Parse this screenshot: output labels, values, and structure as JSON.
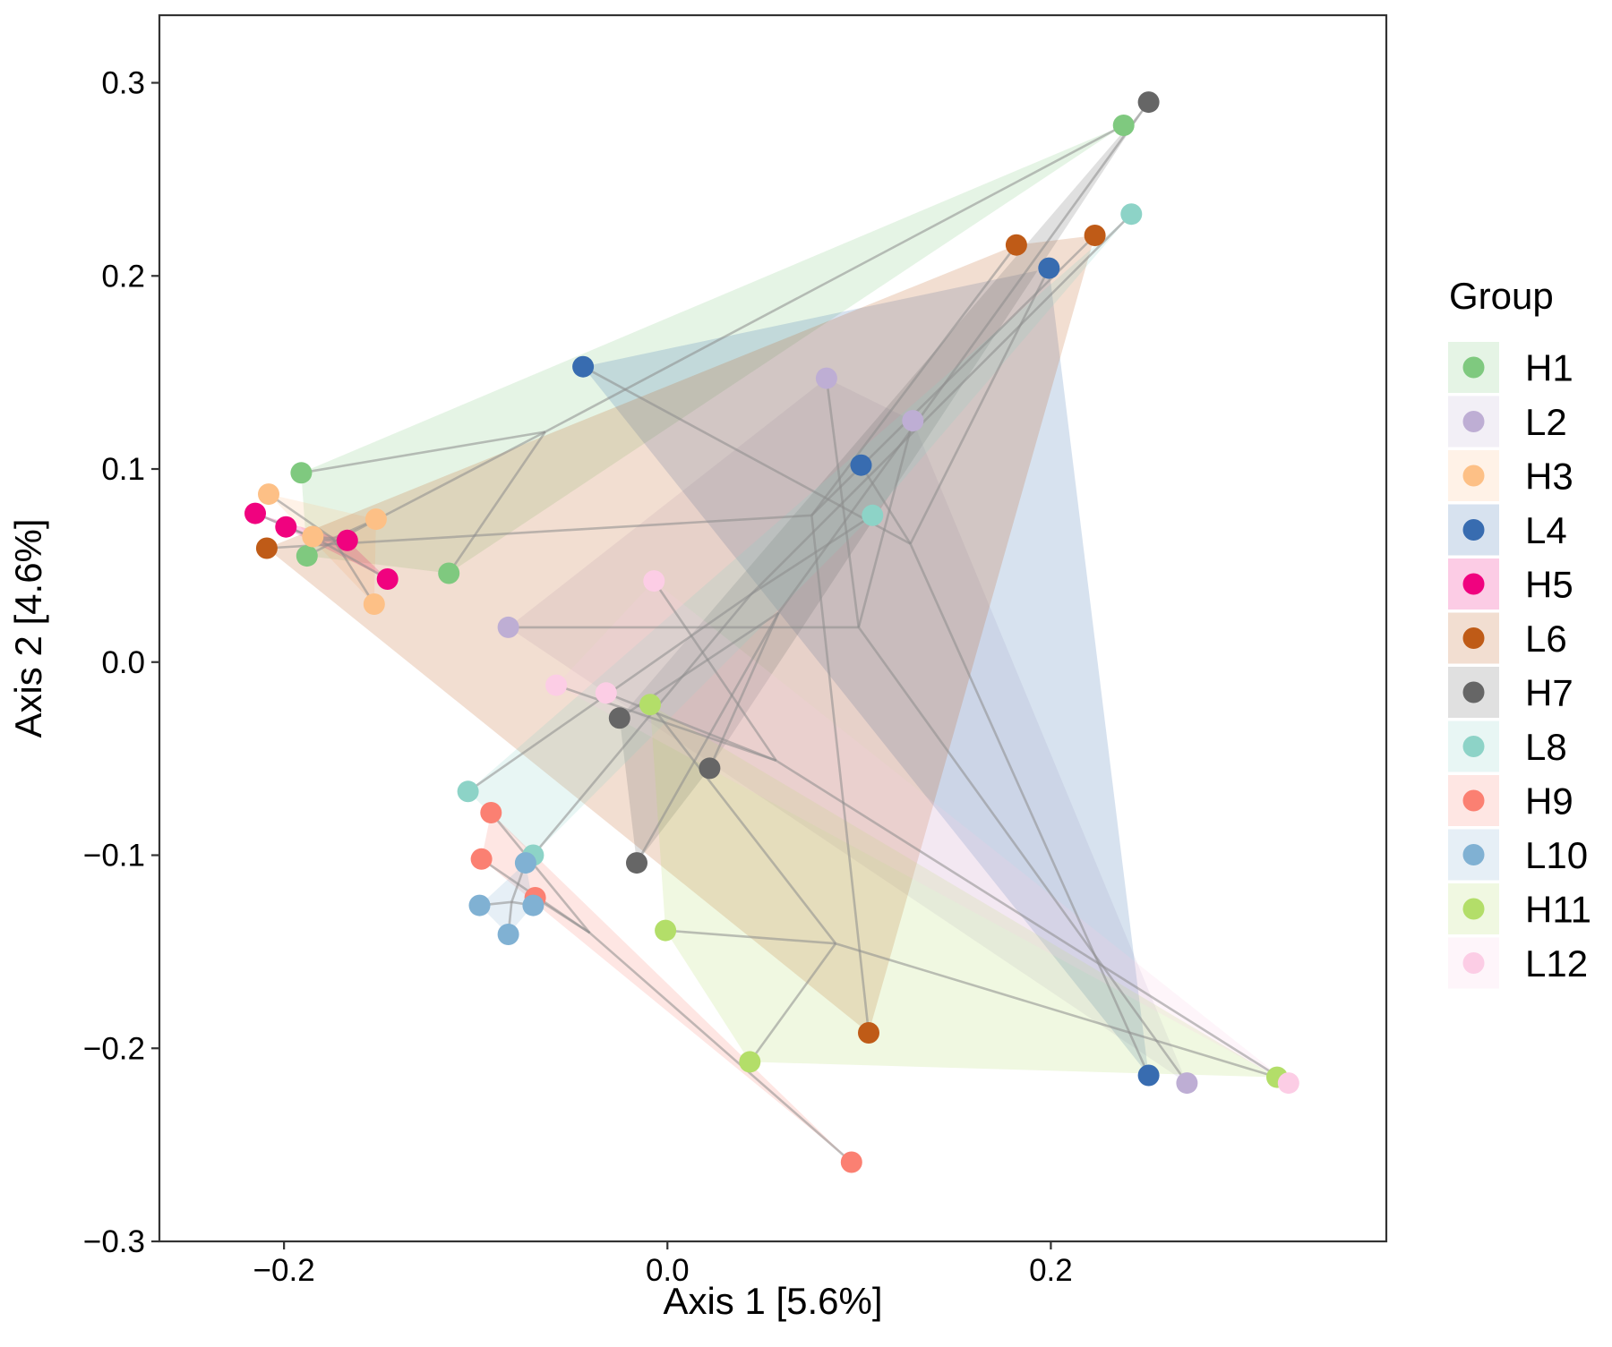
{
  "chart_data": {
    "type": "scatter",
    "title": "",
    "xlabel": "Axis 1 [5.6%]",
    "ylabel": "Axis 2 [4.6%]",
    "xlim": [
      -0.265,
      0.375
    ],
    "ylim": [
      -0.3,
      0.335
    ],
    "x_ticks": [
      -0.2,
      0.0,
      0.2
    ],
    "x_tick_labels": [
      "−0.2",
      "0.0",
      "0.2"
    ],
    "y_ticks": [
      -0.3,
      -0.2,
      -0.1,
      0.0,
      0.1,
      0.2,
      0.3
    ],
    "y_tick_labels": [
      "−0.3",
      "−0.2",
      "−0.1",
      "0.0",
      "0.1",
      "0.2",
      "0.3"
    ],
    "grid": false,
    "legend_title": "Group",
    "legend_position": "right",
    "series": [
      {
        "name": "H1",
        "color": "#7fc97f",
        "points": [
          [
            0.238,
            0.278
          ],
          [
            -0.191,
            0.098
          ],
          [
            -0.188,
            0.055
          ],
          [
            -0.114,
            0.046
          ]
        ]
      },
      {
        "name": "L2",
        "color": "#beaed4",
        "points": [
          [
            0.083,
            0.147
          ],
          [
            0.128,
            0.125
          ],
          [
            -0.083,
            0.018
          ],
          [
            0.271,
            -0.218
          ]
        ]
      },
      {
        "name": "H3",
        "color": "#fdc086",
        "points": [
          [
            -0.208,
            0.087
          ],
          [
            -0.152,
            0.074
          ],
          [
            -0.185,
            0.065
          ],
          [
            -0.153,
            0.03
          ]
        ]
      },
      {
        "name": "L4",
        "color": "#386cb0",
        "points": [
          [
            -0.044,
            0.153
          ],
          [
            0.199,
            0.204
          ],
          [
            0.101,
            0.102
          ],
          [
            0.251,
            -0.214
          ]
        ]
      },
      {
        "name": "H5",
        "color": "#f0027f",
        "points": [
          [
            -0.215,
            0.077
          ],
          [
            -0.199,
            0.07
          ],
          [
            -0.167,
            0.063
          ],
          [
            -0.146,
            0.043
          ]
        ]
      },
      {
        "name": "L6",
        "color": "#bf5b17",
        "points": [
          [
            0.182,
            0.216
          ],
          [
            0.223,
            0.221
          ],
          [
            -0.209,
            0.059
          ],
          [
            0.105,
            -0.192
          ]
        ]
      },
      {
        "name": "H7",
        "color": "#666666",
        "points": [
          [
            0.251,
            0.29
          ],
          [
            -0.025,
            -0.029
          ],
          [
            0.022,
            -0.055
          ],
          [
            -0.016,
            -0.104
          ]
        ]
      },
      {
        "name": "L8",
        "color": "#8dd3c7",
        "points": [
          [
            0.242,
            0.232
          ],
          [
            0.107,
            0.076
          ],
          [
            -0.104,
            -0.067
          ],
          [
            -0.07,
            -0.1
          ]
        ]
      },
      {
        "name": "H9",
        "color": "#fb8072",
        "points": [
          [
            -0.092,
            -0.078
          ],
          [
            -0.097,
            -0.102
          ],
          [
            -0.069,
            -0.122
          ],
          [
            0.096,
            -0.259
          ]
        ]
      },
      {
        "name": "L10",
        "color": "#80b1d3",
        "points": [
          [
            -0.074,
            -0.104
          ],
          [
            -0.098,
            -0.126
          ],
          [
            -0.07,
            -0.126
          ],
          [
            -0.083,
            -0.141
          ]
        ]
      },
      {
        "name": "H11",
        "color": "#b3de69",
        "points": [
          [
            -0.009,
            -0.022
          ],
          [
            -0.001,
            -0.139
          ],
          [
            0.043,
            -0.207
          ],
          [
            0.318,
            -0.215
          ]
        ]
      },
      {
        "name": "L12",
        "color": "#fccde5",
        "points": [
          [
            -0.007,
            0.042
          ],
          [
            -0.058,
            -0.012
          ],
          [
            -0.032,
            -0.016
          ],
          [
            0.324,
            -0.218
          ]
        ]
      }
    ]
  }
}
